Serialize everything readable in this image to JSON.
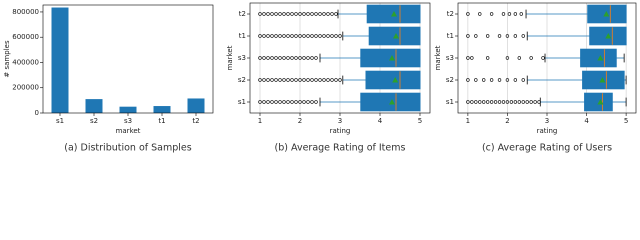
{
  "chart_data": [
    {
      "type": "bar",
      "caption": "(a) Distribution of Samples",
      "x_label": "market",
      "y_label": "# samples",
      "categories": [
        "s1",
        "s2",
        "s3",
        "t1",
        "t2"
      ],
      "values": [
        835000,
        110000,
        50000,
        55000,
        115000
      ],
      "color": "#1f77b4",
      "ylim": [
        0,
        855000
      ],
      "yticks": [
        0,
        200000,
        400000,
        600000,
        800000
      ],
      "grid": false
    },
    {
      "type": "boxplot",
      "caption": "(b) Average Rating of Items",
      "x_label": "rating",
      "y_label": "market",
      "categories": [
        "t2",
        "t1",
        "s3",
        "s2",
        "s1"
      ],
      "color": "#1f77b4",
      "mean_color": "#2ca02c",
      "median_color": "#ff7f0e",
      "xlim": [
        0.75,
        5.25
      ],
      "xticks": [
        1,
        2,
        3,
        4,
        5
      ],
      "grid": true,
      "boxes": [
        {
          "whislo": 2.95,
          "q1": 3.68,
          "med": 4.5,
          "q3": 5.0,
          "whishi": 5.0,
          "mean": 4.35,
          "fliers": [
            1,
            1.1,
            1.2,
            1.3,
            1.4,
            1.5,
            1.6,
            1.7,
            1.8,
            1.9,
            2.0,
            2.1,
            2.2,
            2.3,
            2.4,
            2.5,
            2.6,
            2.7,
            2.8,
            2.9
          ]
        },
        {
          "whislo": 3.07,
          "q1": 3.73,
          "med": 4.5,
          "q3": 5.0,
          "whishi": 5.0,
          "mean": 4.4,
          "fliers": [
            1,
            1.1,
            1.2,
            1.3,
            1.4,
            1.5,
            1.6,
            1.7,
            1.8,
            1.9,
            2.0,
            2.1,
            2.2,
            2.3,
            2.4,
            2.5,
            2.6,
            2.7,
            2.8,
            2.9,
            3.0
          ]
        },
        {
          "whislo": 2.5,
          "q1": 3.52,
          "med": 4.4,
          "q3": 5.0,
          "whishi": 5.0,
          "mean": 4.3,
          "fliers": [
            1,
            1.1,
            1.2,
            1.3,
            1.4,
            1.5,
            1.6,
            1.7,
            1.8,
            1.9,
            2.0,
            2.1,
            2.2,
            2.3,
            2.4
          ]
        },
        {
          "whislo": 3.07,
          "q1": 3.65,
          "med": 4.5,
          "q3": 5.0,
          "whishi": 5.0,
          "mean": 4.38,
          "fliers": [
            1,
            1.1,
            1.2,
            1.3,
            1.4,
            1.5,
            1.6,
            1.7,
            1.8,
            1.9,
            2.0,
            2.1,
            2.2,
            2.3,
            2.4,
            2.5,
            2.6,
            2.7,
            2.8,
            2.9,
            3.0
          ]
        },
        {
          "whislo": 2.5,
          "q1": 3.52,
          "med": 4.4,
          "q3": 5.0,
          "whishi": 5.0,
          "mean": 4.3,
          "fliers": [
            1,
            1.1,
            1.2,
            1.3,
            1.4,
            1.5,
            1.6,
            1.7,
            1.8,
            1.9,
            2.0,
            2.1,
            2.2,
            2.3,
            2.4
          ]
        }
      ]
    },
    {
      "type": "boxplot",
      "caption": "(c) Average Rating of Users",
      "x_label": "rating",
      "y_label": "market",
      "categories": [
        "t2",
        "t1",
        "s3",
        "s2",
        "s1"
      ],
      "color": "#1f77b4",
      "mean_color": "#2ca02c",
      "median_color": "#ff7f0e",
      "xlim": [
        0.75,
        5.25
      ],
      "xticks": [
        1,
        2,
        3,
        4,
        5
      ],
      "grid": true,
      "boxes": [
        {
          "whislo": 2.47,
          "q1": 4.03,
          "med": 4.6,
          "q3": 5.0,
          "whishi": 5.0,
          "mean": 4.5,
          "fliers": [
            1,
            1.3,
            1.6,
            1.9,
            2.05,
            2.2,
            2.35
          ]
        },
        {
          "whislo": 2.5,
          "q1": 4.08,
          "med": 4.65,
          "q3": 5.0,
          "whishi": 5.0,
          "mean": 4.55,
          "fliers": [
            1,
            1.2,
            1.5,
            1.8,
            2.0,
            2.2,
            2.4
          ]
        },
        {
          "whislo": 2.95,
          "q1": 3.85,
          "med": 4.45,
          "q3": 4.75,
          "whishi": 4.95,
          "mean": 4.35,
          "fliers": [
            1,
            1.1,
            1.5,
            2.0,
            2.3,
            2.6,
            2.9
          ]
        },
        {
          "whislo": 2.5,
          "q1": 3.9,
          "med": 4.5,
          "q3": 4.95,
          "whishi": 5.0,
          "mean": 4.4,
          "fliers": [
            1,
            1.2,
            1.4,
            1.6,
            1.8,
            2.0,
            2.2,
            2.4
          ]
        },
        {
          "whislo": 2.83,
          "q1": 3.95,
          "med": 4.4,
          "q3": 4.65,
          "whishi": 5.0,
          "mean": 4.35,
          "fliers": [
            1,
            1.1,
            1.2,
            1.3,
            1.4,
            1.5,
            1.6,
            1.7,
            1.8,
            1.9,
            2.0,
            2.1,
            2.2,
            2.3,
            2.4,
            2.5,
            2.6,
            2.7,
            2.8
          ]
        }
      ]
    }
  ]
}
